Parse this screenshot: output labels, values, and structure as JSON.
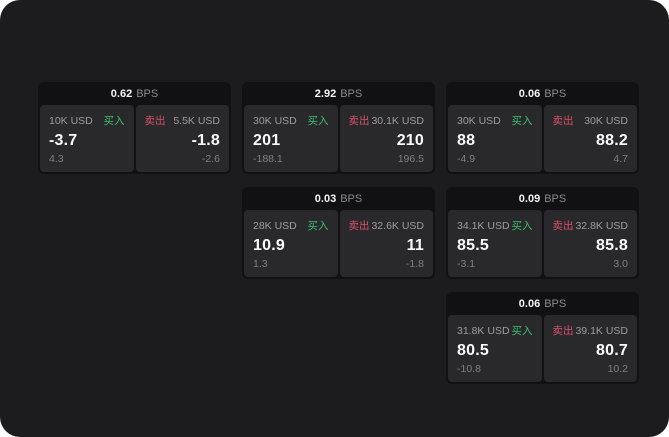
{
  "labels": {
    "bps_unit": "BPS",
    "buy": "买入",
    "sell": "卖出"
  },
  "colors": {
    "background": "#1c1c1e",
    "card": "#111113",
    "tile": "#29292c",
    "buy_green": "#3fbf6f",
    "sell_red": "#d9506a"
  },
  "cards": [
    {
      "bps": "0.62",
      "buy": {
        "amount": "10K USD",
        "value": "-3.7",
        "delta": "4.3"
      },
      "sell": {
        "amount": "5.5K USD",
        "value": "-1.8",
        "delta": "-2.6"
      }
    },
    {
      "bps": "2.92",
      "buy": {
        "amount": "30K USD",
        "value": "201",
        "delta": "-188.1"
      },
      "sell": {
        "amount": "30.1K USD",
        "value": "210",
        "delta": "196.5"
      }
    },
    {
      "bps": "0.06",
      "buy": {
        "amount": "30K USD",
        "value": "88",
        "delta": "-4.9"
      },
      "sell": {
        "amount": "30K USD",
        "value": "88.2",
        "delta": "4.7"
      }
    },
    {
      "bps": "0.03",
      "buy": {
        "amount": "28K USD",
        "value": "10.9",
        "delta": "1.3"
      },
      "sell": {
        "amount": "32.6K USD",
        "value": "11",
        "delta": "-1.8"
      }
    },
    {
      "bps": "0.09",
      "buy": {
        "amount": "34.1K USD",
        "value": "85.5",
        "delta": "-3.1"
      },
      "sell": {
        "amount": "32.8K USD",
        "value": "85.8",
        "delta": "3.0"
      }
    },
    {
      "bps": "0.06",
      "buy": {
        "amount": "31.8K USD",
        "value": "80.5",
        "delta": "-10.8"
      },
      "sell": {
        "amount": "39.1K USD",
        "value": "80.7",
        "delta": "10.2"
      }
    }
  ]
}
